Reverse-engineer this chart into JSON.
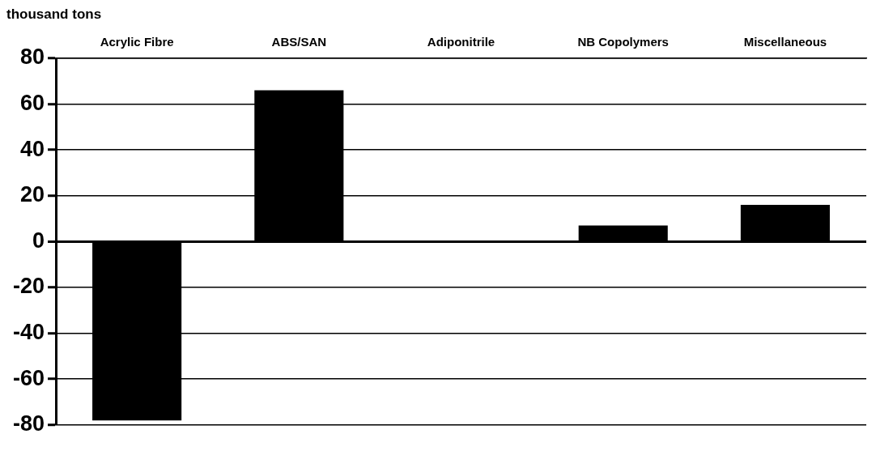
{
  "chart_data": {
    "type": "bar",
    "ylabel": "thousand tons",
    "categories": [
      "Acrylic Fibre",
      "ABS/SAN",
      "Adiponitrile",
      "NB Copolymers",
      "Miscellaneous"
    ],
    "values": [
      -78,
      66,
      0,
      7,
      16
    ],
    "color": "#000000",
    "ylim": [
      -80,
      80
    ],
    "yticks": [
      -80,
      -60,
      -40,
      -20,
      0,
      20,
      40,
      60,
      80
    ],
    "grid": "y",
    "legend": false
  }
}
